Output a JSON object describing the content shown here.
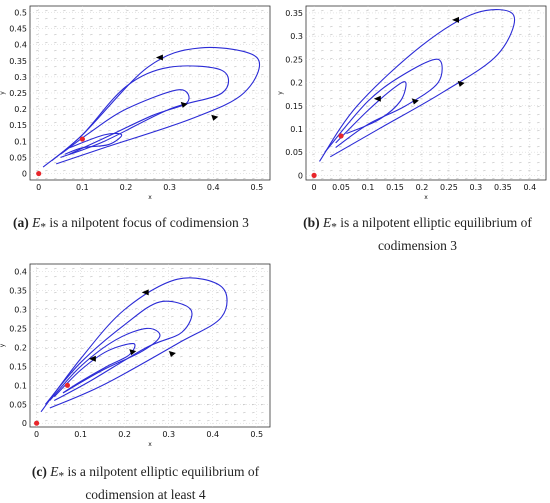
{
  "figure": {
    "captions": [
      {
        "label": "(a)",
        "sub": "*",
        "text": " is a nilpotent focus of codimension 3"
      },
      {
        "label": "(b)",
        "sub": "*",
        "text_1": " is a nilpotent elliptic equilibrium of",
        "text_2": "codimension 3"
      },
      {
        "label": "(c)",
        "sub": "*",
        "text_1": " is a nilpotent elliptic equilibrium of",
        "text_2": "codimension at least 4"
      }
    ],
    "symbol": "E"
  },
  "chart_data": [
    {
      "id": "a",
      "type": "line",
      "xlabel": "x",
      "ylabel": "y",
      "xlim": [
        -0.02,
        0.53
      ],
      "ylim": [
        -0.02,
        0.52
      ],
      "xticks": [
        "0",
        "0.1",
        "0.2",
        "0.3",
        "0.4",
        "0.5"
      ],
      "yticks": [
        "0",
        "0.05",
        "0.1",
        "0.15",
        "0.2",
        "0.25",
        "0.3",
        "0.35",
        "0.4",
        "0.45",
        "0.5"
      ],
      "xtick_values": [
        0,
        0.1,
        0.2,
        0.3,
        0.4,
        0.5
      ],
      "ytick_values": [
        0,
        0.05,
        0.1,
        0.15,
        0.2,
        0.25,
        0.3,
        0.35,
        0.4,
        0.45,
        0.5
      ],
      "equilibria": [
        {
          "x": 0,
          "y": 0
        },
        {
          "x": 0.1,
          "y": 0.107
        }
      ],
      "curve_color": "#2b2bd6",
      "point_color": "#e8262b",
      "series": [
        {
          "values": [
            [
              0.01,
              0.02
            ],
            [
              0.1,
              0.12
            ],
            [
              0.25,
              0.33
            ],
            [
              0.37,
              0.39
            ],
            [
              0.5,
              0.36
            ],
            [
              0.47,
              0.25
            ],
            [
              0.35,
              0.17
            ],
            [
              0.15,
              0.08
            ],
            [
              0.04,
              0.03
            ]
          ]
        },
        {
          "values": [
            [
              0.03,
              0.04
            ],
            [
              0.1,
              0.12
            ],
            [
              0.2,
              0.27
            ],
            [
              0.3,
              0.33
            ],
            [
              0.42,
              0.32
            ],
            [
              0.42,
              0.25
            ],
            [
              0.3,
              0.2
            ],
            [
              0.15,
              0.1
            ],
            [
              0.05,
              0.05
            ]
          ]
        },
        {
          "values": [
            [
              0.05,
              0.06
            ],
            [
              0.12,
              0.13
            ],
            [
              0.2,
              0.2
            ],
            [
              0.32,
              0.26
            ],
            [
              0.34,
              0.22
            ],
            [
              0.26,
              0.18
            ],
            [
              0.15,
              0.11
            ],
            [
              0.07,
              0.06
            ]
          ]
        },
        {
          "values": [
            [
              0.07,
              0.08
            ],
            [
              0.15,
              0.12
            ],
            [
              0.19,
              0.12
            ],
            [
              0.16,
              0.09
            ],
            [
              0.1,
              0.08
            ],
            [
              0.06,
              0.06
            ]
          ]
        }
      ],
      "arrows": [
        {
          "x": 0.28,
          "y": 0.36,
          "dir": "left"
        },
        {
          "x": 0.33,
          "y": 0.21,
          "dir": "right"
        },
        {
          "x": 0.4,
          "y": 0.17,
          "dir": "right"
        }
      ]
    },
    {
      "id": "b",
      "type": "line",
      "xlabel": "x",
      "ylabel": "y",
      "xlim": [
        -0.015,
        0.43
      ],
      "ylim": [
        -0.01,
        0.365
      ],
      "xticks": [
        "0",
        "0.05",
        "0.1",
        "0.15",
        "0.2",
        "0.25",
        "0.3",
        "0.35",
        "0.4"
      ],
      "yticks": [
        "0",
        "0.05",
        "0.1",
        "0.15",
        "0.2",
        "0.25",
        "0.3",
        "0.35"
      ],
      "xtick_values": [
        0,
        0.05,
        0.1,
        0.15,
        0.2,
        0.25,
        0.3,
        0.35,
        0.4
      ],
      "ytick_values": [
        0,
        0.05,
        0.1,
        0.15,
        0.2,
        0.25,
        0.3,
        0.35
      ],
      "equilibria": [
        {
          "x": 0,
          "y": 0
        },
        {
          "x": 0.05,
          "y": 0.085
        }
      ],
      "curve_color": "#2b2bd6",
      "point_color": "#e8262b",
      "series": [
        {
          "values": [
            [
              0.01,
              0.03
            ],
            [
              0.08,
              0.15
            ],
            [
              0.2,
              0.28
            ],
            [
              0.3,
              0.35
            ],
            [
              0.37,
              0.345
            ],
            [
              0.34,
              0.26
            ],
            [
              0.24,
              0.18
            ],
            [
              0.12,
              0.1
            ],
            [
              0.03,
              0.04
            ]
          ]
        },
        {
          "values": [
            [
              0.02,
              0.05
            ],
            [
              0.1,
              0.16
            ],
            [
              0.17,
              0.22
            ],
            [
              0.23,
              0.25
            ],
            [
              0.23,
              0.2
            ],
            [
              0.17,
              0.15
            ],
            [
              0.1,
              0.11
            ],
            [
              0.04,
              0.06
            ]
          ]
        },
        {
          "values": [
            [
              0.04,
              0.07
            ],
            [
              0.1,
              0.14
            ],
            [
              0.15,
              0.19
            ],
            [
              0.17,
              0.2
            ],
            [
              0.16,
              0.16
            ],
            [
              0.12,
              0.12
            ],
            [
              0.06,
              0.09
            ]
          ]
        }
      ],
      "arrows": [
        {
          "x": 0.265,
          "y": 0.335,
          "dir": "left"
        },
        {
          "x": 0.12,
          "y": 0.165,
          "dir": "left"
        },
        {
          "x": 0.185,
          "y": 0.157,
          "dir": "right"
        },
        {
          "x": 0.27,
          "y": 0.195,
          "dir": "right"
        }
      ]
    },
    {
      "id": "c",
      "type": "line",
      "xlabel": "x",
      "ylabel": "y",
      "xlim": [
        -0.015,
        0.53
      ],
      "ylim": [
        -0.01,
        0.42
      ],
      "xticks": [
        "0",
        "0.1",
        "0.2",
        "0.3",
        "0.4",
        "0.5"
      ],
      "yticks": [
        "0",
        "0.05",
        "0.1",
        "0.15",
        "0.2",
        "0.25",
        "0.3",
        "0.35",
        "0.4"
      ],
      "xtick_values": [
        0,
        0.1,
        0.2,
        0.3,
        0.4,
        0.5
      ],
      "ytick_values": [
        0,
        0.05,
        0.1,
        0.15,
        0.2,
        0.25,
        0.3,
        0.35,
        0.4
      ],
      "equilibria": [
        {
          "x": 0,
          "y": 0
        },
        {
          "x": 0.07,
          "y": 0.1
        }
      ],
      "curve_color": "#2b2bd6",
      "point_color": "#e8262b",
      "series": [
        {
          "values": [
            [
              0.01,
              0.03
            ],
            [
              0.1,
              0.17
            ],
            [
              0.2,
              0.3
            ],
            [
              0.32,
              0.38
            ],
            [
              0.42,
              0.36
            ],
            [
              0.42,
              0.28
            ],
            [
              0.32,
              0.21
            ],
            [
              0.15,
              0.1
            ],
            [
              0.03,
              0.04
            ]
          ]
        },
        {
          "values": [
            [
              0.02,
              0.05
            ],
            [
              0.1,
              0.16
            ],
            [
              0.2,
              0.26
            ],
            [
              0.28,
              0.32
            ],
            [
              0.35,
              0.3
            ],
            [
              0.33,
              0.24
            ],
            [
              0.25,
              0.2
            ],
            [
              0.12,
              0.11
            ],
            [
              0.04,
              0.06
            ]
          ]
        },
        {
          "values": [
            [
              0.03,
              0.06
            ],
            [
              0.1,
              0.15
            ],
            [
              0.18,
              0.22
            ],
            [
              0.25,
              0.25
            ],
            [
              0.28,
              0.23
            ],
            [
              0.24,
              0.19
            ],
            [
              0.15,
              0.14
            ],
            [
              0.06,
              0.08
            ]
          ]
        },
        {
          "values": [
            [
              0.04,
              0.07
            ],
            [
              0.1,
              0.14
            ],
            [
              0.16,
              0.19
            ],
            [
              0.22,
              0.21
            ],
            [
              0.21,
              0.18
            ],
            [
              0.16,
              0.15
            ],
            [
              0.1,
              0.11
            ],
            [
              0.06,
              0.08
            ]
          ]
        }
      ],
      "arrows": [
        {
          "x": 0.25,
          "y": 0.345,
          "dir": "left"
        },
        {
          "x": 0.13,
          "y": 0.17,
          "dir": "left"
        },
        {
          "x": 0.215,
          "y": 0.185,
          "dir": "right"
        },
        {
          "x": 0.305,
          "y": 0.18,
          "dir": "right"
        }
      ]
    }
  ]
}
